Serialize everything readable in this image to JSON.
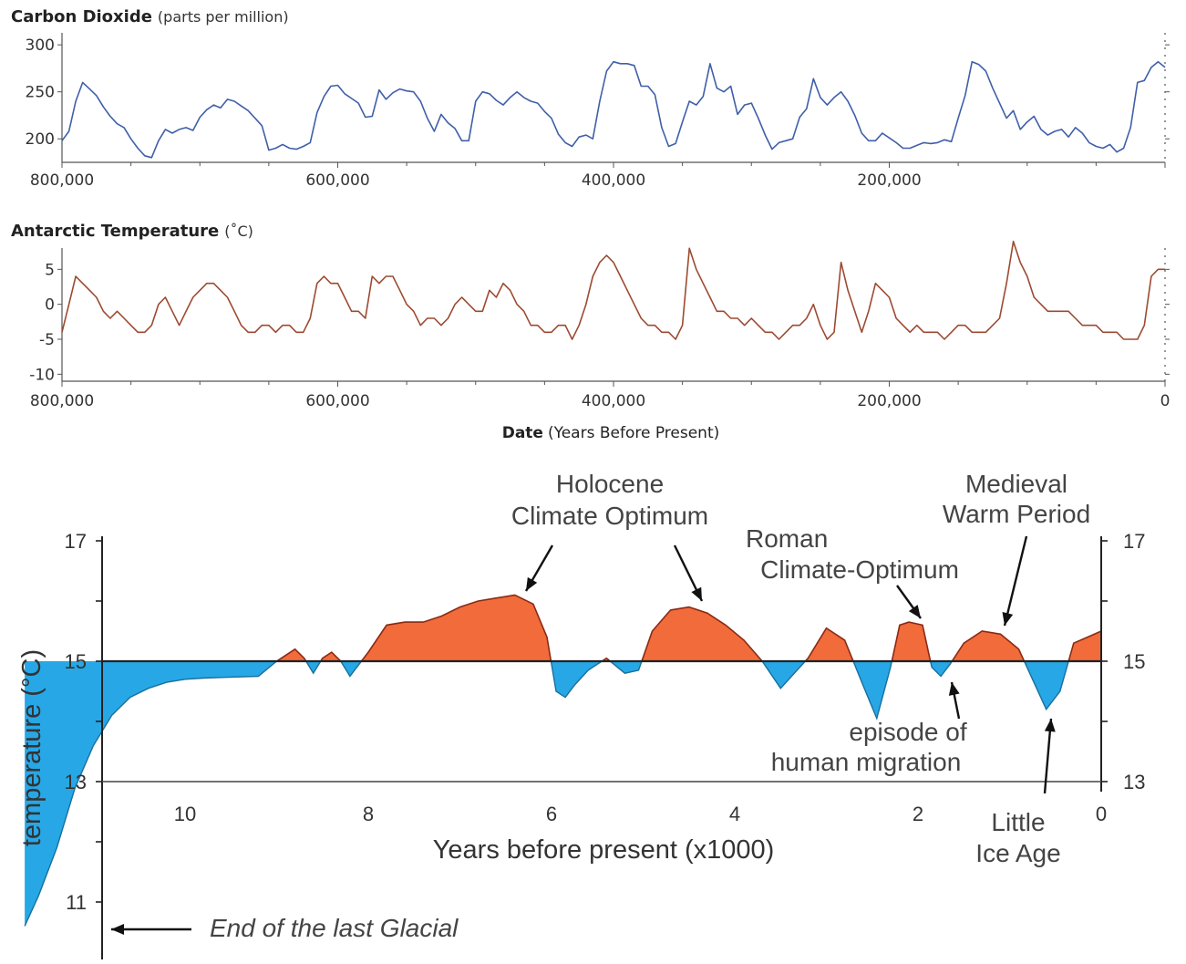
{
  "chart_data": [
    {
      "type": "line",
      "title": "Carbon Dioxide",
      "unit": "(parts per million)",
      "x_tick_labels": [
        "800,000",
        "600,000",
        "400,000",
        "200,000"
      ],
      "y_tick_labels": [
        "300",
        "250",
        "200"
      ],
      "xlim": [
        800000,
        0
      ],
      "ylim": [
        175,
        305
      ],
      "color": "#3f5fa8",
      "series": [
        {
          "x": [
            800000,
            795000,
            790000,
            785000,
            780000,
            775000,
            770000,
            765000,
            760000,
            755000,
            750000,
            745000,
            740000,
            735000,
            730000,
            725000,
            720000,
            715000,
            710000,
            705000,
            700000,
            695000,
            690000,
            685000,
            680000,
            675000,
            670000,
            665000,
            660000,
            655000,
            650000,
            645000,
            640000,
            635000,
            630000,
            625000,
            620000,
            615000,
            610000,
            605000,
            600000,
            595000,
            590000,
            585000,
            580000,
            575000,
            570000,
            565000,
            560000,
            555000,
            550000,
            545000,
            540000,
            535000,
            530000,
            525000,
            520000,
            515000,
            510000,
            505000,
            500000,
            495000,
            490000,
            485000,
            480000,
            475000,
            470000,
            465000,
            460000,
            455000,
            450000,
            445000,
            440000,
            435000,
            430000,
            425000,
            420000,
            415000,
            410000,
            405000,
            400000,
            395000,
            390000,
            385000,
            380000,
            375000,
            370000,
            365000,
            360000,
            355000,
            350000,
            345000,
            340000,
            335000,
            330000,
            325000,
            320000,
            315000,
            310000,
            305000,
            300000,
            295000,
            290000,
            285000,
            280000,
            275000,
            270000,
            265000,
            260000,
            255000,
            250000,
            245000,
            240000,
            235000,
            230000,
            225000,
            220000,
            215000,
            210000,
            205000,
            200000,
            195000,
            190000,
            185000,
            180000,
            175000,
            170000,
            165000,
            160000,
            155000,
            150000,
            145000,
            140000,
            135000,
            130000,
            125000,
            120000,
            115000,
            110000,
            105000,
            100000,
            95000,
            90000,
            85000,
            80000,
            75000,
            70000,
            65000,
            60000,
            55000,
            50000,
            45000,
            40000,
            35000,
            30000,
            25000,
            20000,
            15000,
            10000,
            5000,
            0
          ],
          "y": [
            198,
            208,
            240,
            260,
            253,
            246,
            234,
            224,
            216,
            212,
            200,
            190,
            182,
            180,
            198,
            210,
            206,
            210,
            212,
            209,
            223,
            231,
            236,
            233,
            242,
            240,
            235,
            230,
            222,
            214,
            188,
            190,
            194,
            190,
            189,
            192,
            196,
            228,
            245,
            256,
            257,
            248,
            243,
            238,
            223,
            224,
            252,
            242,
            249,
            253,
            251,
            250,
            240,
            222,
            208,
            226,
            217,
            211,
            198,
            198,
            240,
            250,
            248,
            241,
            236,
            244,
            250,
            244,
            240,
            238,
            229,
            222,
            205,
            196,
            192,
            202,
            204,
            200,
            240,
            272,
            282,
            280,
            280,
            278,
            256,
            256,
            247,
            212,
            192,
            195,
            218,
            240,
            236,
            245,
            280,
            254,
            250,
            256,
            226,
            236,
            238,
            222,
            204,
            189,
            196,
            198,
            200,
            223,
            232,
            264,
            244,
            236,
            244,
            250,
            240,
            225,
            206,
            198,
            198,
            206,
            201,
            196,
            190,
            190,
            193,
            196,
            195,
            196,
            199,
            197,
            222,
            246,
            282,
            279,
            272,
            254,
            238,
            222,
            230,
            210,
            218,
            224,
            210,
            204,
            208,
            210,
            202,
            212,
            206,
            196,
            192,
            190,
            194,
            186,
            190,
            212,
            260,
            262,
            276,
            282,
            276
          ]
        }
      ]
    },
    {
      "type": "line",
      "title": "Antarctic Temperature",
      "unit": "(˚C)",
      "x_tick_labels": [
        "800,000",
        "600,000",
        "400,000",
        "200,000",
        "0"
      ],
      "y_tick_labels": [
        "5",
        "0",
        "-5",
        "-10"
      ],
      "xtitle": "Date",
      "xtitle_unit": "(Years Before Present)",
      "xlim": [
        800000,
        0
      ],
      "ylim": [
        -11,
        7
      ],
      "color": "#9c4a31",
      "series": [
        {
          "x": [
            800000,
            795000,
            790000,
            785000,
            780000,
            775000,
            770000,
            765000,
            760000,
            755000,
            750000,
            745000,
            740000,
            735000,
            730000,
            725000,
            720000,
            715000,
            710000,
            705000,
            700000,
            695000,
            690000,
            685000,
            680000,
            675000,
            670000,
            665000,
            660000,
            655000,
            650000,
            645000,
            640000,
            635000,
            630000,
            625000,
            620000,
            615000,
            610000,
            605000,
            600000,
            595000,
            590000,
            585000,
            580000,
            575000,
            570000,
            565000,
            560000,
            555000,
            550000,
            545000,
            540000,
            535000,
            530000,
            525000,
            520000,
            515000,
            510000,
            505000,
            500000,
            495000,
            490000,
            485000,
            480000,
            475000,
            470000,
            465000,
            460000,
            455000,
            450000,
            445000,
            440000,
            435000,
            430000,
            425000,
            420000,
            415000,
            410000,
            405000,
            400000,
            395000,
            390000,
            385000,
            380000,
            375000,
            370000,
            365000,
            360000,
            355000,
            350000,
            345000,
            340000,
            335000,
            330000,
            325000,
            320000,
            315000,
            310000,
            305000,
            300000,
            295000,
            290000,
            285000,
            280000,
            275000,
            270000,
            265000,
            260000,
            255000,
            250000,
            245000,
            240000,
            235000,
            230000,
            225000,
            220000,
            215000,
            210000,
            205000,
            200000,
            195000,
            190000,
            185000,
            180000,
            175000,
            170000,
            165000,
            160000,
            155000,
            150000,
            145000,
            140000,
            135000,
            130000,
            125000,
            120000,
            115000,
            110000,
            105000,
            100000,
            95000,
            90000,
            85000,
            80000,
            75000,
            70000,
            65000,
            60000,
            55000,
            50000,
            45000,
            40000,
            35000,
            30000,
            25000,
            20000,
            15000,
            10000,
            5000,
            0
          ],
          "y": [
            -4,
            0,
            4,
            3,
            2,
            1,
            -1,
            -2,
            -1,
            -2,
            -3,
            -4,
            -4,
            -3,
            0,
            1,
            -1,
            -3,
            -1,
            1,
            2,
            3,
            3,
            2,
            1,
            -1,
            -3,
            -4,
            -4,
            -3,
            -3,
            -4,
            -3,
            -3,
            -4,
            -4,
            -2,
            3,
            4,
            3,
            3,
            1,
            -1,
            -1,
            -2,
            4,
            3,
            4,
            4,
            2,
            0,
            -1,
            -3,
            -2,
            -2,
            -3,
            -2,
            0,
            1,
            0,
            -1,
            -1,
            2,
            1,
            3,
            2,
            0,
            -1,
            -3,
            -3,
            -4,
            -4,
            -3,
            -3,
            -5,
            -3,
            0,
            4,
            6,
            7,
            6,
            4,
            2,
            0,
            -2,
            -3,
            -3,
            -4,
            -4,
            -5,
            -3,
            8,
            5,
            3,
            1,
            -1,
            -1,
            -2,
            -2,
            -3,
            -2,
            -3,
            -4,
            -4,
            -5,
            -4,
            -3,
            -3,
            -2,
            0,
            -3,
            -5,
            -4,
            6,
            2,
            -1,
            -4,
            -1,
            3,
            2,
            1,
            -2,
            -3,
            -4,
            -3,
            -4,
            -4,
            -4,
            -5,
            -4,
            -3,
            -3,
            -4,
            -4,
            -4,
            -3,
            -2,
            3,
            9,
            6,
            4,
            1,
            0,
            -1,
            -1,
            -1,
            -1,
            -2,
            -3,
            -3,
            -3,
            -4,
            -4,
            -4,
            -5,
            -5,
            -5,
            -3,
            4,
            5,
            5
          ]
        }
      ]
    },
    {
      "type": "area",
      "xlabel": "Years before present (x1000)",
      "ylabel": "temperature (°C)",
      "x_tick_labels": [
        "10",
        "8",
        "6",
        "4",
        "2",
        "0"
      ],
      "y_tick_labels_left": [
        "17",
        "15",
        "13",
        "11"
      ],
      "y_tick_labels_right": [
        "17",
        "15",
        "13"
      ],
      "xlim": [
        11.8,
        0
      ],
      "ylim": [
        10.4,
        17.2
      ],
      "baseline": 15,
      "warm_color": "#f26b3a",
      "cold_color": "#27a7e6",
      "series": [
        {
          "x": [
            11.75,
            11.6,
            11.4,
            11.2,
            11.0,
            10.8,
            10.6,
            10.4,
            10.2,
            10.0,
            9.8,
            9.6,
            9.4,
            9.2,
            9.0,
            8.8,
            8.7,
            8.6,
            8.5,
            8.4,
            8.3,
            8.2,
            8.0,
            7.8,
            7.6,
            7.4,
            7.2,
            7.0,
            6.8,
            6.6,
            6.4,
            6.2,
            6.05,
            5.95,
            5.85,
            5.75,
            5.6,
            5.4,
            5.2,
            5.05,
            4.9,
            4.7,
            4.5,
            4.3,
            4.1,
            3.9,
            3.7,
            3.5,
            3.2,
            3.0,
            2.8,
            2.6,
            2.45,
            2.3,
            2.2,
            2.1,
            1.95,
            1.85,
            1.75,
            1.65,
            1.5,
            1.3,
            1.1,
            0.9,
            0.75,
            0.6,
            0.45,
            0.3,
            0.15,
            0.0
          ],
          "y": [
            10.6,
            11.1,
            11.9,
            12.9,
            13.6,
            14.1,
            14.4,
            14.55,
            14.65,
            14.7,
            14.72,
            14.73,
            14.74,
            14.75,
            15.0,
            15.2,
            15.05,
            14.8,
            15.05,
            15.15,
            15.0,
            14.75,
            15.15,
            15.6,
            15.65,
            15.65,
            15.75,
            15.9,
            16.0,
            16.05,
            16.1,
            15.95,
            15.4,
            14.5,
            14.4,
            14.6,
            14.85,
            15.05,
            14.8,
            14.85,
            15.5,
            15.85,
            15.9,
            15.8,
            15.6,
            15.35,
            15.0,
            14.55,
            15.05,
            15.55,
            15.35,
            14.6,
            14.05,
            14.9,
            15.6,
            15.65,
            15.6,
            14.9,
            14.75,
            14.95,
            15.3,
            15.5,
            15.45,
            15.2,
            14.7,
            14.2,
            14.5,
            15.3,
            15.4,
            15.5
          ]
        }
      ],
      "annotations": [
        {
          "lines": [
            "Holocene",
            "Climate Optimum"
          ]
        },
        {
          "lines": [
            "Roman",
            "Climate-Optimum"
          ]
        },
        {
          "lines": [
            "Medieval",
            "Warm Period"
          ]
        },
        {
          "lines": [
            "episode of",
            "human migration"
          ]
        },
        {
          "lines": [
            "Little",
            "Ice Age"
          ]
        },
        {
          "lines": [
            "End of the last Glacial"
          ]
        }
      ]
    }
  ]
}
